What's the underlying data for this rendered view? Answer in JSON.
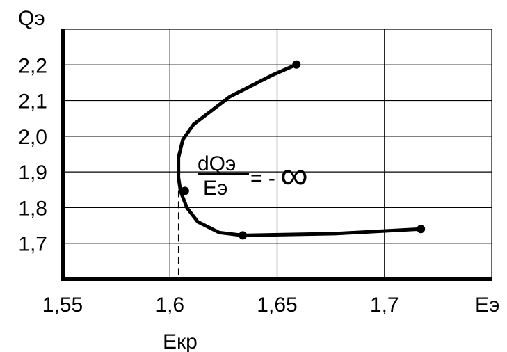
{
  "chart_data": {
    "type": "line",
    "xlabel": "Eэ",
    "ylabel": "Qэ",
    "xlim": [
      1.55,
      1.75
    ],
    "ylim": [
      1.6,
      2.3
    ],
    "x_ticks": [
      {
        "value": 1.55,
        "label": "1,55"
      },
      {
        "value": 1.6,
        "label": "1,6"
      },
      {
        "value": 1.65,
        "label": "1,65"
      },
      {
        "value": 1.7,
        "label": "1,7"
      }
    ],
    "y_ticks": [
      {
        "value": 1.7,
        "label": "1,7"
      },
      {
        "value": 1.8,
        "label": "1,8"
      },
      {
        "value": 1.9,
        "label": "1,9"
      },
      {
        "value": 2.0,
        "label": "2,0"
      },
      {
        "value": 2.1,
        "label": "2,1"
      },
      {
        "value": 2.2,
        "label": "2,2"
      }
    ],
    "grid": true,
    "series": [
      {
        "points": [
          {
            "x": 1.659,
            "y": 2.201
          },
          {
            "x": 1.648,
            "y": 2.172
          },
          {
            "x": 1.628,
            "y": 2.111
          },
          {
            "x": 1.619,
            "y": 2.07
          },
          {
            "x": 1.611,
            "y": 2.033
          },
          {
            "x": 1.606,
            "y": 1.99
          },
          {
            "x": 1.604,
            "y": 1.94
          },
          {
            "x": 1.604,
            "y": 1.884
          },
          {
            "x": 1.605,
            "y": 1.845
          },
          {
            "x": 1.608,
            "y": 1.799
          },
          {
            "x": 1.613,
            "y": 1.76
          },
          {
            "x": 1.623,
            "y": 1.73
          },
          {
            "x": 1.634,
            "y": 1.722
          },
          {
            "x": 1.677,
            "y": 1.727
          },
          {
            "x": 1.717,
            "y": 1.74
          }
        ],
        "markers": [
          {
            "x": 1.659,
            "y": 2.201
          },
          {
            "x": 1.607,
            "y": 1.847
          },
          {
            "x": 1.634,
            "y": 1.722
          },
          {
            "x": 1.717,
            "y": 1.74
          }
        ],
        "color": "#000000"
      }
    ],
    "reference_line": {
      "x": 1.604,
      "label": "Екр"
    },
    "annotation": {
      "numerator": "dQэ",
      "denominator": "Eэ",
      "relation": "= -",
      "symbol": "∞"
    }
  }
}
